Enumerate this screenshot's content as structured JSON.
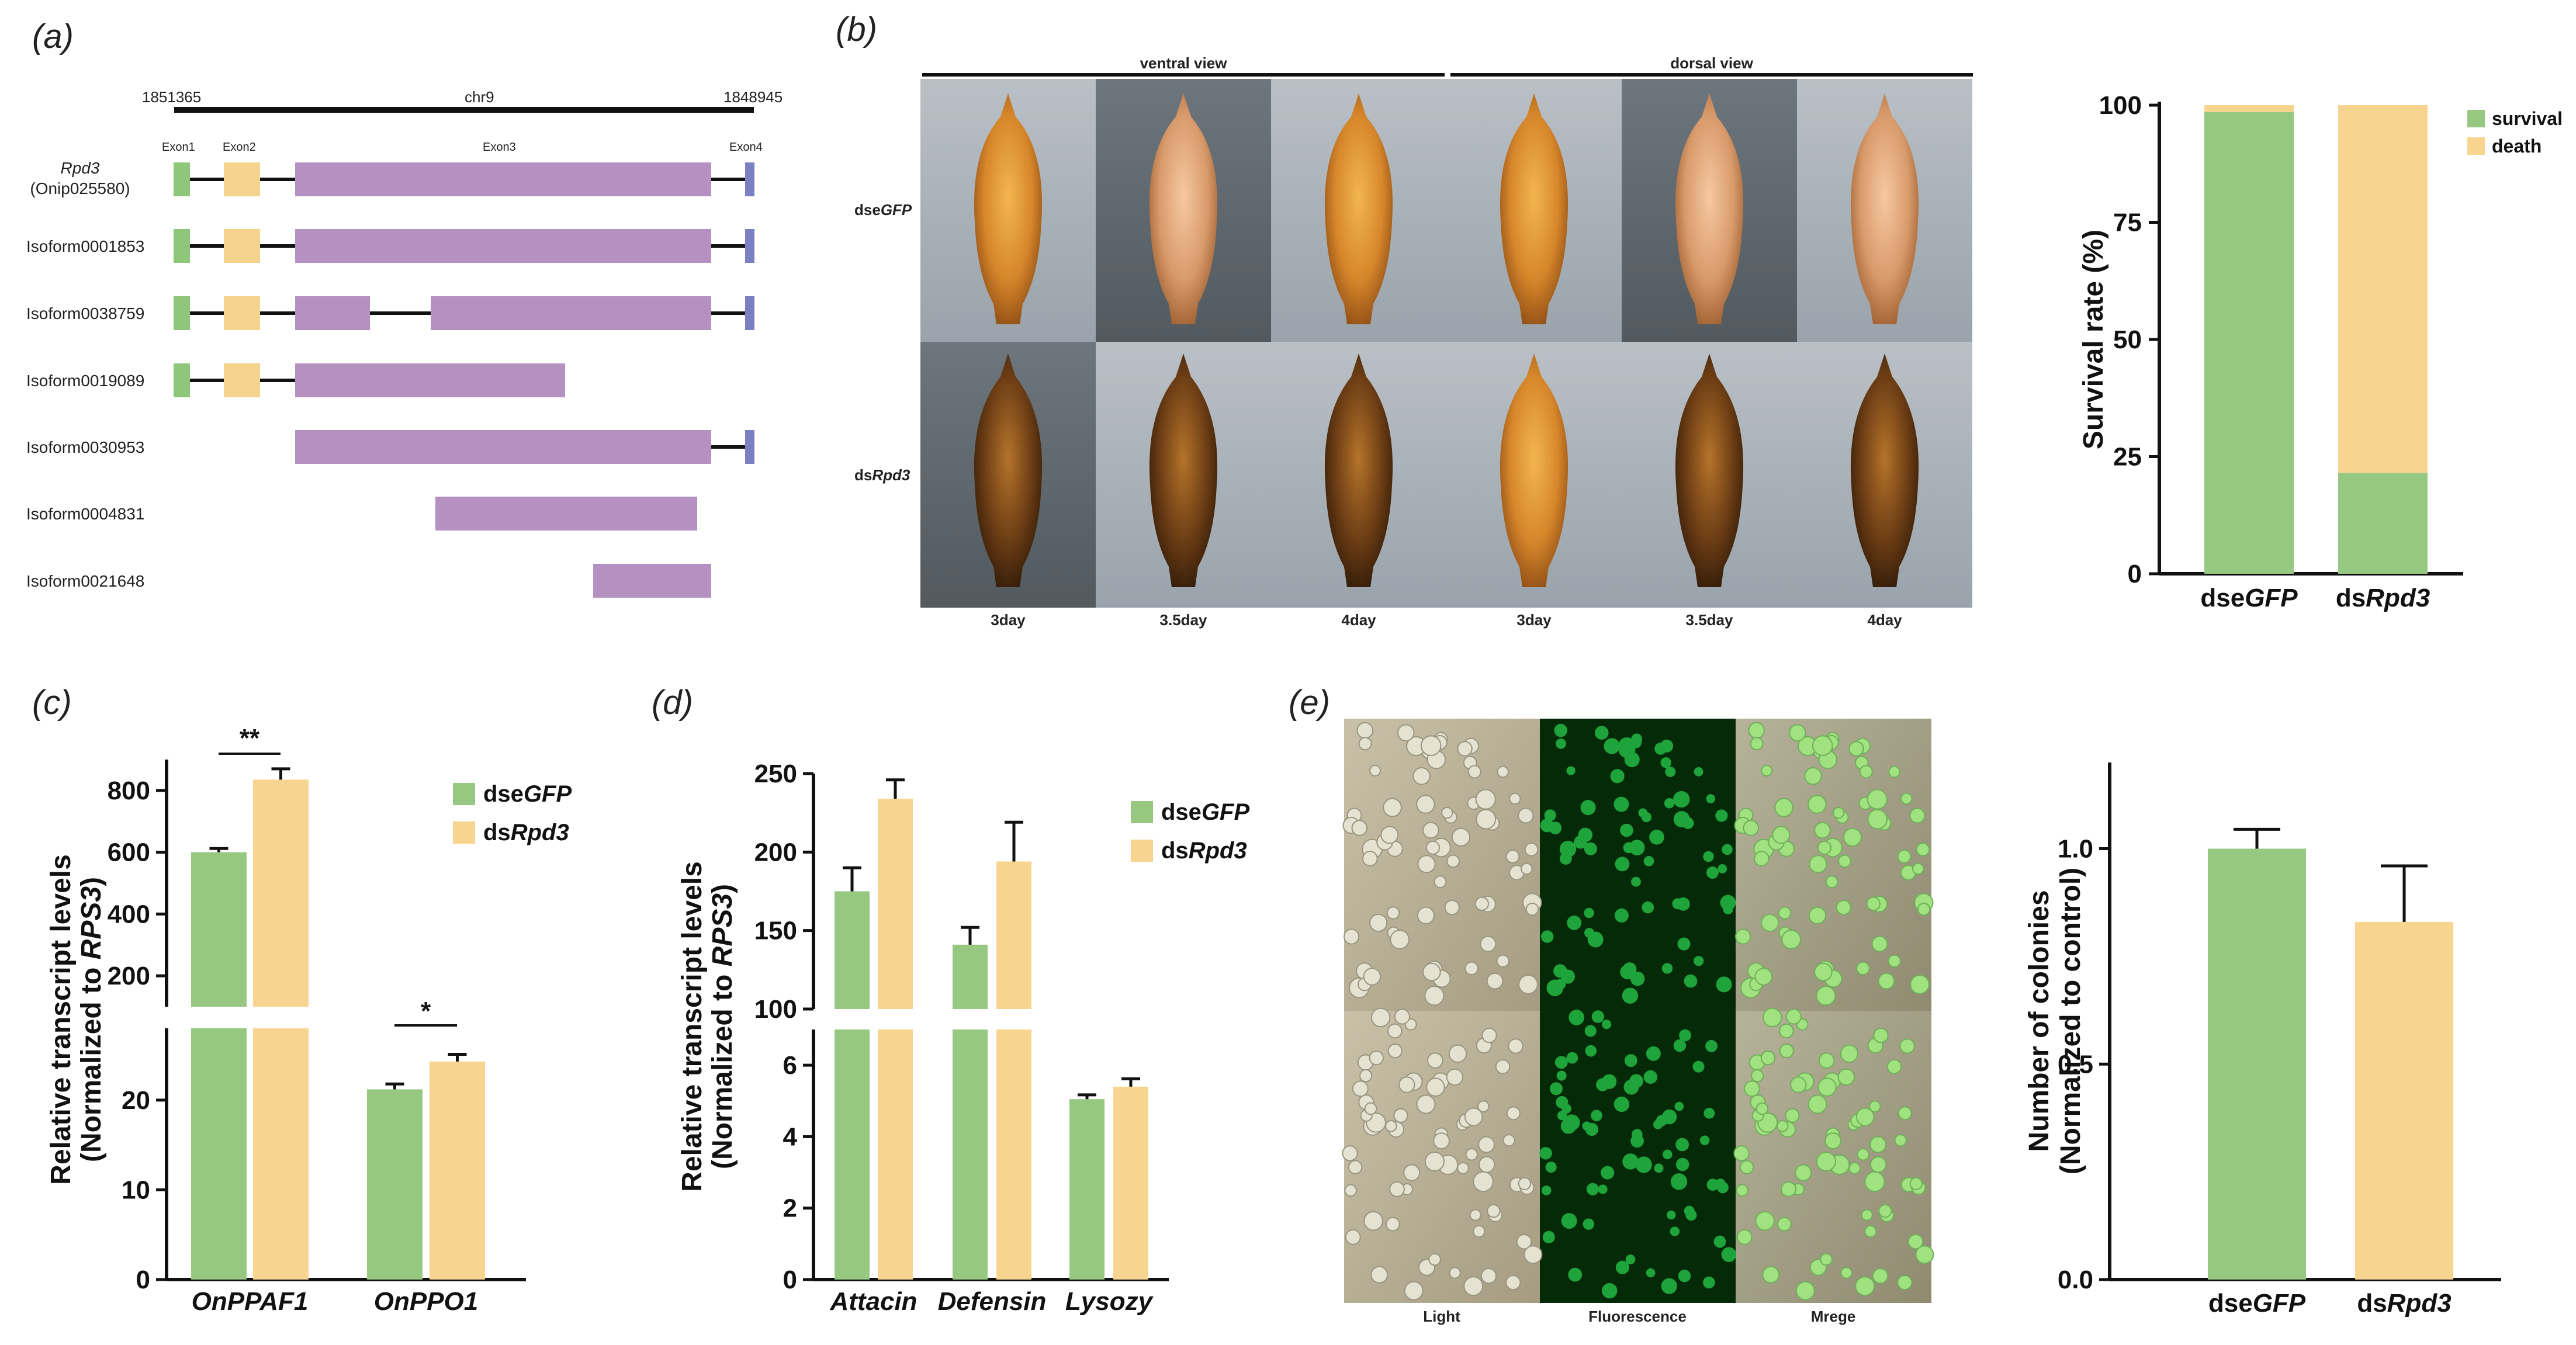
{
  "colors": {
    "green": "#96c882",
    "yellow": "#f7d591",
    "purple": "#b591c2",
    "blue_exon": "#7b7fc4",
    "green_exon": "#8fc77a",
    "yellow_exon": "#f6d38c",
    "line": "#111111"
  },
  "panel_labels": {
    "a": "(a)",
    "b": "(b)",
    "c": "(c)",
    "d": "(d)",
    "e": "(e)"
  },
  "gene_structure": {
    "chr": "chr9",
    "start_coord": "1851365",
    "end_coord": "1848945",
    "exon_labels": [
      "Exon1",
      "Exon2",
      "Exon3",
      "Exon4"
    ],
    "gene_name": "Rpd3",
    "gene_id": "(Onip025580)",
    "isoforms": [
      "Isoform0001853",
      "Isoform0038759",
      "Isoform0019089",
      "Isoform0030953",
      "Isoform0004831",
      "Isoform0021648"
    ]
  },
  "photo_panel": {
    "view_labels": [
      "ventral view",
      "dorsal view"
    ],
    "row_labels": [
      {
        "prefix": "dse",
        "italic": "GFP"
      },
      {
        "prefix": "ds",
        "italic": "Rpd3"
      }
    ],
    "day_labels": [
      "3day",
      "3.5day",
      "4day",
      "3day",
      "3.5day",
      "4day"
    ]
  },
  "micro_panel": {
    "column_labels": [
      "Light",
      "Fluorescence",
      "Mrege"
    ]
  },
  "chart_data": [
    {
      "id": "survival",
      "type": "bar",
      "stacked": true,
      "categories": [
        {
          "prefix": "dse",
          "italic": "GFP"
        },
        {
          "prefix": "ds",
          "italic": "Rpd3"
        }
      ],
      "series": [
        {
          "name": "survival",
          "values": [
            98.5,
            21.5
          ]
        },
        {
          "name": "death",
          "values": [
            1.5,
            78.5
          ]
        }
      ],
      "ylabel": "Survival rate (%)",
      "ylim": [
        0,
        100
      ],
      "yticks": [
        "0",
        "25",
        "50",
        "75",
        "100"
      ],
      "legend": "top-right"
    },
    {
      "id": "c",
      "type": "bar",
      "broken_axis": true,
      "categories": [
        "OnPPAF1",
        "OnPPO1"
      ],
      "series": [
        {
          "name_prefix": "dse",
          "name_italic": "GFP",
          "values": [
            600,
            21.2
          ],
          "errors": [
            12,
            0.6
          ]
        },
        {
          "name_prefix": "ds",
          "name_italic": "Rpd3",
          "values": [
            835,
            24.3
          ],
          "errors": [
            35,
            0.8
          ]
        }
      ],
      "ylabel_line1": "Relative transcript levels",
      "ylabel_line2_prefix": "(Normalized to ",
      "ylabel_line2_italic": "RPS3",
      "ylabel_line2_suffix": ")",
      "lower_ylim": [
        0,
        28
      ],
      "lower_yticks": [
        "0",
        "10",
        "20"
      ],
      "upper_ylim": [
        100,
        900
      ],
      "upper_yticks": [
        "200",
        "400",
        "600",
        "800"
      ],
      "significance": [
        "**",
        "*"
      ]
    },
    {
      "id": "d",
      "type": "bar",
      "broken_axis": true,
      "categories": [
        "Attacin",
        "Defensin",
        "Lysozy"
      ],
      "series": [
        {
          "name_prefix": "dse",
          "name_italic": "GFP",
          "values": [
            175,
            141,
            5.05
          ],
          "errors": [
            15,
            11,
            0.12
          ]
        },
        {
          "name_prefix": "ds",
          "name_italic": "Rpd3",
          "values": [
            234,
            194,
            5.4
          ],
          "errors": [
            12,
            25,
            0.22
          ]
        }
      ],
      "ylabel_line1": "Relative transcript levels",
      "ylabel_line2_prefix": "(Normalized to ",
      "ylabel_line2_italic": "RPS3",
      "ylabel_line2_suffix": ")",
      "lower_ylim": [
        0,
        7
      ],
      "lower_yticks": [
        "0",
        "2",
        "4",
        "6"
      ],
      "upper_ylim": [
        100,
        250
      ],
      "upper_yticks": [
        "100",
        "150",
        "200",
        "250"
      ]
    },
    {
      "id": "colonies",
      "type": "bar",
      "categories": [
        {
          "prefix": "dse",
          "italic": "GFP"
        },
        {
          "prefix": "ds",
          "italic": "Rpd3"
        }
      ],
      "values": [
        1.0,
        0.83
      ],
      "errors": [
        0.045,
        0.13
      ],
      "ylabel_line1": "Number of colonies",
      "ylabel_line2": "(Normalized to control)",
      "ylim": [
        0,
        1.2
      ],
      "yticks": [
        "0.0",
        "0.5",
        "1.0"
      ]
    }
  ]
}
